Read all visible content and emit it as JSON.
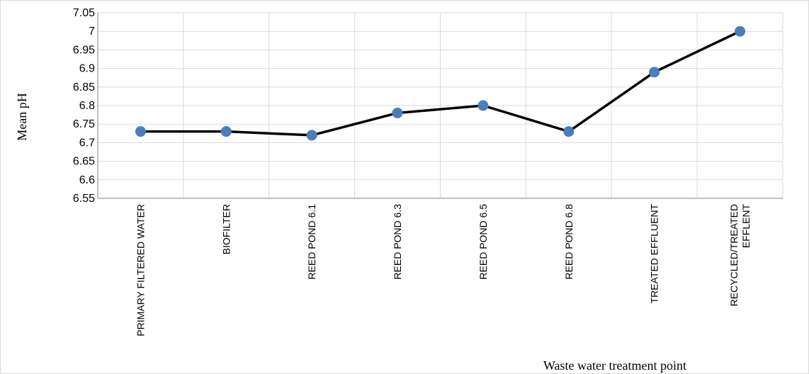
{
  "chart_data": {
    "type": "line",
    "categories": [
      [
        "PRIMARY FILTERED WATER"
      ],
      [
        "BIOFILTER"
      ],
      [
        "REED POND 6.1"
      ],
      [
        "REED POND 6.3"
      ],
      [
        "REED POND 6.5"
      ],
      [
        "REED POND 6.8"
      ],
      [
        "TREATED EFFLUENT"
      ],
      [
        "RECYCLED/TREATED",
        "EFFLENT"
      ]
    ],
    "values": [
      6.73,
      6.73,
      6.72,
      6.78,
      6.8,
      6.73,
      6.89,
      7.0
    ],
    "yticks": [
      "6.55",
      "6.6",
      "6.65",
      "6.7",
      "6.75",
      "6.8",
      "6.85",
      "6.9",
      "6.95",
      "7",
      "7.05"
    ],
    "ylim": [
      6.55,
      7.05
    ],
    "ylabel": "Mean pH",
    "xlabel": "Waste water treatment point",
    "grid": true,
    "colors": {
      "line": "#000000",
      "marker": "#4a7ebb",
      "grid": "#d9d9d9"
    }
  }
}
